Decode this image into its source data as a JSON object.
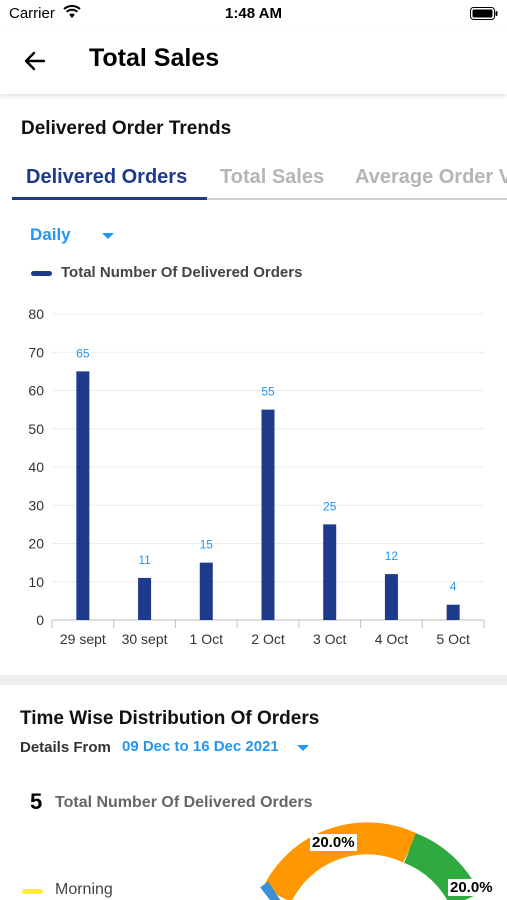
{
  "status_bar": {
    "carrier": "Carrier",
    "time": "1:48 AM"
  },
  "header": {
    "title": "Total Sales",
    "back_icon": "arrow-left-icon"
  },
  "trends": {
    "title": "Delivered Order Trends",
    "tabs": [
      {
        "label": "Delivered Orders",
        "active": true
      },
      {
        "label": "Total Sales",
        "active": false
      },
      {
        "label": "Average Order V",
        "active": false
      }
    ],
    "period": "Daily",
    "legend_label": "Total Number Of Delivered Orders",
    "accent_color": "#1e3a8a",
    "link_color": "#2196f3"
  },
  "chart_data": {
    "type": "bar",
    "categories": [
      "29 sept",
      "30 sept",
      "1 Oct",
      "2 Oct",
      "3 Oct",
      "4 Oct",
      "5 Oct"
    ],
    "series": [
      {
        "name": "Total Number Of Delivered Orders",
        "values": [
          65,
          11,
          15,
          55,
          25,
          12,
          4
        ]
      }
    ],
    "ylim": [
      0,
      80
    ],
    "yticks": [
      0,
      10,
      20,
      30,
      40,
      50,
      60,
      70,
      80
    ],
    "grid": true,
    "legend": "top-left",
    "bar_color": "#1e3a8a",
    "label_color": "#2196f3"
  },
  "distribution": {
    "title": "Time Wise Distribution Of Orders",
    "details_label": "Details From",
    "date_range": "09 Dec to 16 Dec 2021",
    "total_count": "5",
    "total_label": "Total Number Of Delivered Orders",
    "slices": [
      {
        "label": "20.0%",
        "color": "#ff9800"
      },
      {
        "label": "20.0%",
        "color": "#2eaa3f"
      }
    ],
    "legend": [
      {
        "label": "Morning",
        "color": "#ffeb3b"
      }
    ]
  }
}
